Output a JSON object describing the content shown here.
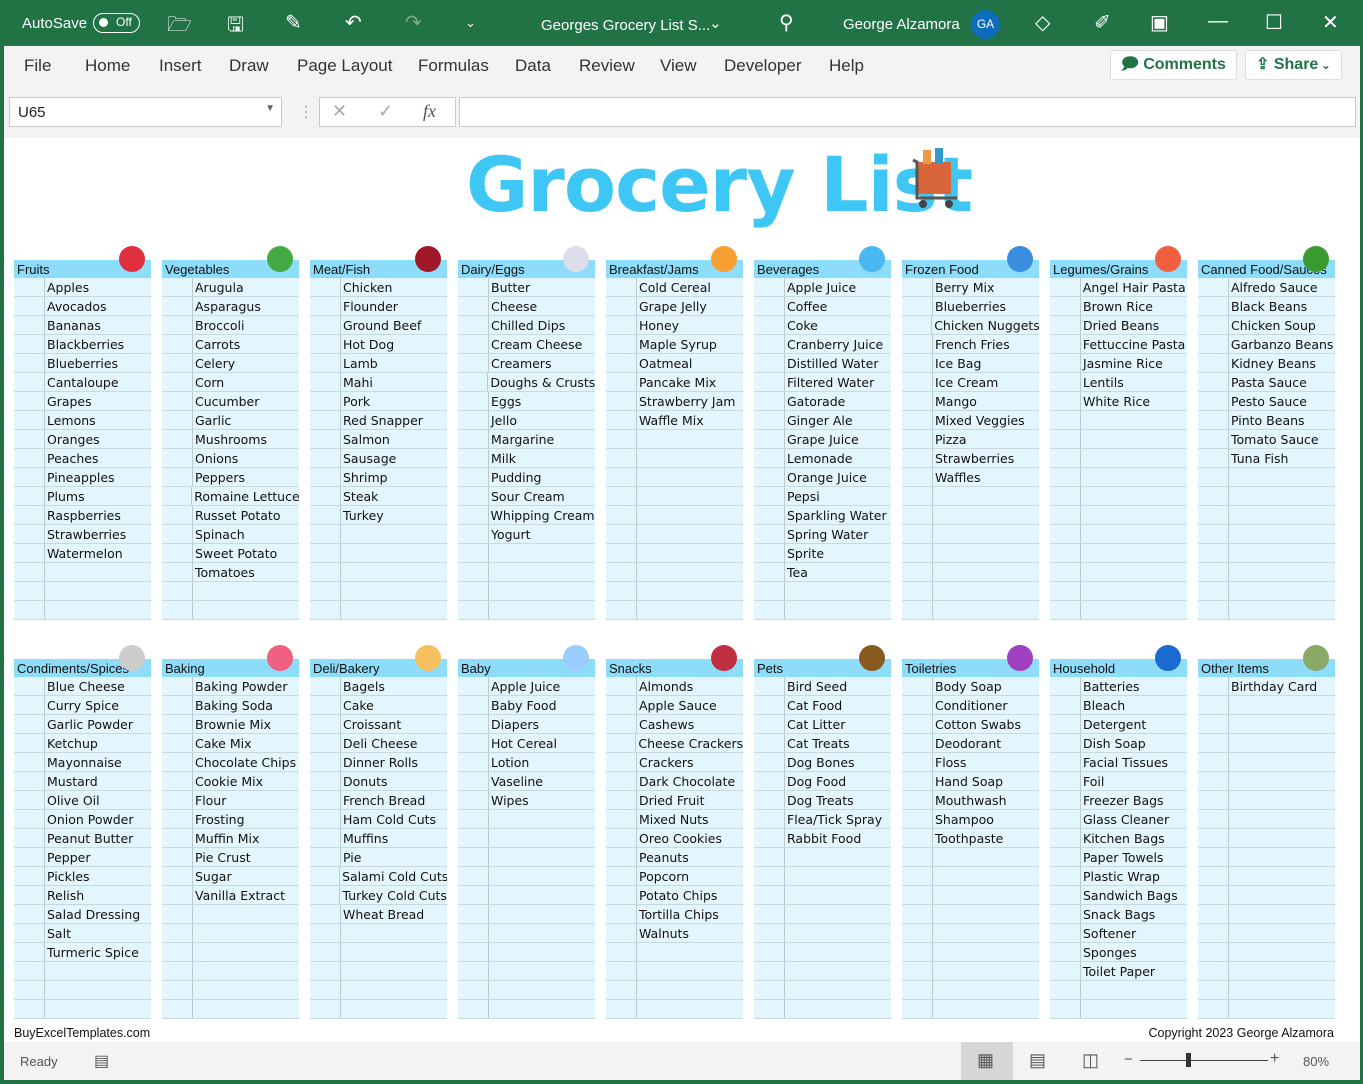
{
  "titlebar": {
    "autosave": "AutoSave",
    "toggle": "Off",
    "doc_title": "Georges Grocery List S...",
    "user": "George Alzamora",
    "initials": "GA"
  },
  "ribbon": {
    "tabs": [
      "File",
      "Home",
      "Insert",
      "Draw",
      "Page Layout",
      "Formulas",
      "Data",
      "Review",
      "View",
      "Developer",
      "Help"
    ],
    "comments": "Comments",
    "share": "Share"
  },
  "formula_bar": {
    "name_box": "U65",
    "formula": ""
  },
  "sheet": {
    "title": "Grocery List",
    "footer_left": "BuyExcelTemplates.com",
    "footer_right": "Copyright 2023 George Alzamora"
  },
  "colors": {
    "header": "#8ddcfa",
    "body": "#e4f6fd",
    "title": "#3ec6f5",
    "excel_green": "#217346"
  },
  "categories": [
    {
      "name": "Fruits",
      "icon": "apple-grapes-icon",
      "items": [
        "Apples",
        "Avocados",
        "Bananas",
        "Blackberries",
        "Blueberries",
        "Cantaloupe",
        "Grapes",
        "Lemons",
        "Oranges",
        "Peaches",
        "Pineapples",
        "Plums",
        "Raspberries",
        "Strawberries",
        "Watermelon"
      ]
    },
    {
      "name": "Vegetables",
      "icon": "lettuce-carrot-icon",
      "items": [
        "Arugula",
        "Asparagus",
        "Broccoli",
        "Carrots",
        "Celery",
        "Corn",
        "Cucumber",
        "Garlic",
        "Mushrooms",
        "Onions",
        "Peppers",
        "Romaine Lettuce",
        "Russet Potato",
        "Spinach",
        "Sweet Potato",
        "Tomatoes"
      ]
    },
    {
      "name": "Meat/Fish",
      "icon": "steak-fish-icon",
      "items": [
        "Chicken",
        "Flounder",
        "Ground Beef",
        "Hot Dog",
        "Lamb",
        "Mahi",
        "Pork",
        "Red Snapper",
        "Salmon",
        "Sausage",
        "Shrimp",
        "Steak",
        "Turkey"
      ]
    },
    {
      "name": "Dairy/Eggs",
      "icon": "milk-egg-icon",
      "items": [
        "Butter",
        "Cheese",
        "Chilled Dips",
        "Cream Cheese",
        "Creamers",
        "Doughs & Crusts",
        "Eggs",
        "Jello",
        "Margarine",
        "Milk",
        "Pudding",
        "Sour Cream",
        "Whipping Cream",
        "Yogurt"
      ]
    },
    {
      "name": "Breakfast/Jams",
      "icon": "pancakes-icon",
      "items": [
        "Cold Cereal",
        "Grape Jelly",
        "Honey",
        "Maple Syrup",
        "Oatmeal",
        "Pancake Mix",
        "Strawberry Jam",
        "Waffle Mix"
      ]
    },
    {
      "name": "Beverages",
      "icon": "bottle-icon",
      "items": [
        "Apple Juice",
        "Coffee",
        "Coke",
        "Cranberry Juice",
        "Distilled Water",
        "Filtered Water",
        "Gatorade",
        "Ginger Ale",
        "Grape Juice",
        "Lemonade",
        "Orange Juice",
        "Pepsi",
        "Sparkling Water",
        "Spring Water",
        "Sprite",
        "Tea"
      ]
    },
    {
      "name": "Frozen Food",
      "icon": "snowflake-icon",
      "items": [
        "Berry Mix",
        "Blueberries",
        "Chicken Nuggets",
        "French Fries",
        "Ice Bag",
        "Ice Cream",
        "Mango",
        "Mixed Veggies",
        "Pizza",
        "Strawberries",
        "Waffles"
      ]
    },
    {
      "name": "Legumes/Grains",
      "icon": "pasta-bowl-icon",
      "items": [
        "Angel Hair Pasta",
        "Brown Rice",
        "Dried Beans",
        "Fettuccine Pasta",
        "Jasmine Rice",
        "Lentils",
        "White Rice"
      ]
    },
    {
      "name": "Canned Food/Sauces",
      "icon": "can-icon",
      "items": [
        "Alfredo Sauce",
        "Black Beans",
        "Chicken Soup",
        "Garbanzo Beans",
        "Kidney Beans",
        "Pasta Sauce",
        "Pesto Sauce",
        "Pinto Beans",
        "Tomato Sauce",
        "Tuna Fish"
      ]
    },
    {
      "name": "Condiments/Spices",
      "icon": "salt-shaker-icon",
      "items": [
        "Blue Cheese",
        "Curry Spice",
        "Garlic Powder",
        "Ketchup",
        "Mayonnaise",
        "Mustard",
        "Olive Oil",
        "Onion Powder",
        "Peanut Butter",
        "Pepper",
        "Pickles",
        "Relish",
        "Salad Dressing",
        "Salt",
        "Turmeric Spice"
      ]
    },
    {
      "name": "Baking",
      "icon": "cake-icon",
      "items": [
        "Baking Powder",
        "Baking Soda",
        "Brownie Mix",
        "Cake Mix",
        "Chocolate Chips",
        "Cookie Mix",
        "Flour",
        "Frosting",
        "Muffin Mix",
        "Pie Crust",
        "Sugar",
        "Vanilla Extract"
      ]
    },
    {
      "name": "Deli/Bakery",
      "icon": "sandwich-bread-icon",
      "items": [
        "Bagels",
        "Cake",
        "Croissant",
        "Deli Cheese",
        "Dinner Rolls",
        "Donuts",
        "French Bread",
        "Ham Cold Cuts",
        "Muffins",
        "Pie",
        "Salami Cold Cuts",
        "Turkey Cold Cuts",
        "Wheat Bread"
      ]
    },
    {
      "name": "Baby",
      "icon": "baby-bottle-icon",
      "items": [
        "Apple Juice",
        "Baby Food",
        "Diapers",
        "Hot Cereal",
        "Lotion",
        "Vaseline",
        "Wipes"
      ]
    },
    {
      "name": "Snacks",
      "icon": "chocolate-icon",
      "items": [
        "Almonds",
        "Apple Sauce",
        "Cashews",
        "Cheese Crackers",
        "Crackers",
        "Dark Chocolate",
        "Dried Fruit",
        "Mixed Nuts",
        "Oreo Cookies",
        "Peanuts",
        "Popcorn",
        "Potato Chips",
        "Tortilla Chips",
        "Walnuts"
      ]
    },
    {
      "name": "Pets",
      "icon": "dog-cat-icon",
      "items": [
        "Bird Seed",
        "Cat Food",
        "Cat Litter",
        "Cat Treats",
        "Dog Bones",
        "Dog Food",
        "Dog Treats",
        "Flea/Tick Spray",
        "Rabbit Food"
      ]
    },
    {
      "name": "Toiletries",
      "icon": "soap-dispenser-icon",
      "items": [
        "Body Soap",
        "Conditioner",
        "Cotton Swabs",
        "Deodorant",
        "Floss",
        "Hand Soap",
        "Mouthwash",
        "Shampoo",
        "Toothpaste"
      ]
    },
    {
      "name": "Household",
      "icon": "bucket-broom-icon",
      "items": [
        "Batteries",
        "Bleach",
        "Detergent",
        "Dish Soap",
        "Facial Tissues",
        "Foil",
        "Freezer Bags",
        "Glass Cleaner",
        "Kitchen Bags",
        "Paper Towels",
        "Plastic Wrap",
        "Sandwich Bags",
        "Snack Bags",
        "Softener",
        "Sponges",
        "Toilet Paper"
      ]
    },
    {
      "name": "Other Items",
      "icon": "tools-people-icon",
      "items": [
        "Birthday Card"
      ]
    }
  ],
  "status": {
    "ready": "Ready",
    "zoom": "80%",
    "zoom_level_percent": 80
  }
}
